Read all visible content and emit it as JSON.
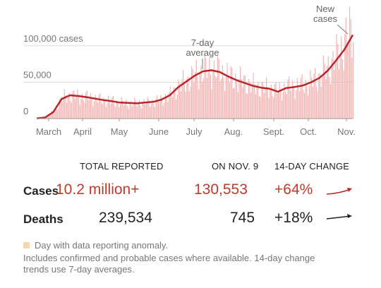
{
  "chart_data": {
    "type": "bar",
    "x_ticks": [
      "March",
      "April",
      "May",
      "June",
      "July",
      "Aug.",
      "Sept.",
      "Oct.",
      "Nov."
    ],
    "y_ticks": [
      {
        "value": 0,
        "label": "0"
      },
      {
        "value": 50000,
        "label": "50,000"
      },
      {
        "value": 100000,
        "label": "100,000 cases"
      }
    ],
    "ylim": [
      0,
      130000
    ],
    "series": [
      {
        "name": "New cases",
        "kind": "bar",
        "weekly_values": [
          500,
          2000,
          10000,
          28000,
          32000,
          30000,
          29000,
          27000,
          25000,
          24000,
          22000,
          21000,
          21000,
          22000,
          23000,
          26000,
          32000,
          44000,
          52000,
          60000,
          66000,
          67000,
          64000,
          58000,
          54000,
          50000,
          45000,
          42000,
          41000,
          38000,
          43000,
          44000,
          46000,
          51000,
          58000,
          70000,
          85000,
          105000,
          125000
        ]
      },
      {
        "name": "7-day average",
        "kind": "line",
        "weekly_values": [
          200,
          1500,
          9000,
          27000,
          32000,
          31000,
          29500,
          27500,
          25500,
          24000,
          22000,
          21500,
          21000,
          22000,
          23000,
          26000,
          32000,
          43000,
          51000,
          59000,
          65000,
          66500,
          64000,
          58000,
          53000,
          49000,
          45000,
          42500,
          41000,
          37000,
          42000,
          43500,
          45500,
          50000,
          56000,
          66000,
          80000,
          95000,
          115000
        ]
      }
    ],
    "annotations": [
      {
        "text": [
          "7-day",
          "average"
        ],
        "target_x_index": 19.5
      },
      {
        "text": [
          "New",
          "cases"
        ],
        "target_x_index": 37.5
      }
    ],
    "colors": {
      "bars": "#f4b3b3",
      "line": "#b9262c",
      "axis": "#999999",
      "anomaly": "#f6d9a6"
    }
  },
  "table": {
    "headers": {
      "total": "TOTAL REPORTED",
      "day": "ON NOV. 9",
      "change": "14-DAY CHANGE"
    },
    "rows": [
      {
        "label": "Cases",
        "total": "10.2 million+",
        "day": "130,553",
        "change": "+64%",
        "color": "#b9262c"
      },
      {
        "label": "Deaths",
        "total": "239,534",
        "day": "745",
        "change": "+18%",
        "color": "#222222"
      }
    ]
  },
  "legend": {
    "anomaly_label": "Day with data reporting anomaly."
  },
  "note": "Includes confirmed and probable cases where available. 14-day change trends use 7-day averages."
}
